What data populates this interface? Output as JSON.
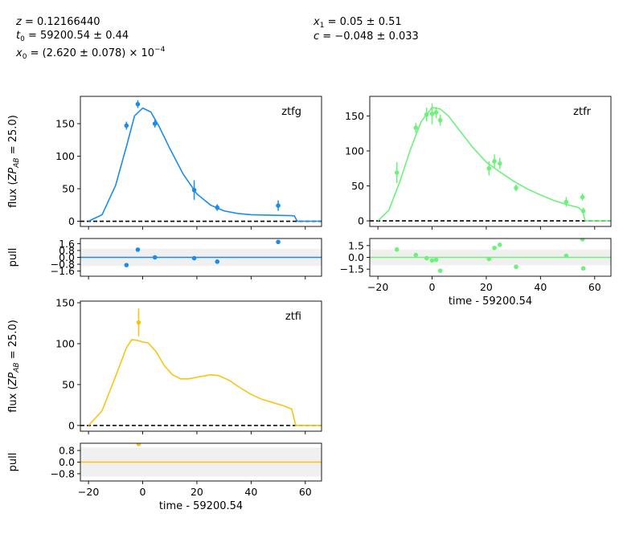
{
  "fit_params": {
    "col1": [
      "z = 0.12166440",
      "t0 = 59200.54 ± 0.44",
      "x0 = (2.620 ± 0.078) × 10^-4"
    ],
    "col2": [
      "x1 = 0.05 ± 0.51",
      "c = −0.048 ± 0.033"
    ]
  },
  "colors": {
    "ztfg": "#1a8ceb",
    "ztfr": "#6cf27a",
    "ztfi": "#f7c511",
    "zero_line": "#000000",
    "pull_band": "#f0f0f0"
  },
  "chart_data": [
    {
      "type": "scatter",
      "band": "ztfg",
      "band_label": "ztfg",
      "xlim": [
        -23,
        66
      ],
      "ylim": [
        -8,
        192
      ],
      "y_ticks": [
        0,
        50,
        100,
        150
      ],
      "ylabel": "flux (ZP_AB = 25.0)",
      "points": [
        {
          "x": -6,
          "y": 147,
          "err": 6
        },
        {
          "x": -1.8,
          "y": 180,
          "err": 6
        },
        {
          "x": 4.5,
          "y": 150,
          "err": 6
        },
        {
          "x": 19,
          "y": 48,
          "err": 15
        },
        {
          "x": 27.5,
          "y": 21,
          "err": 5
        },
        {
          "x": 50,
          "y": 24,
          "err": 8
        }
      ],
      "model": [
        [
          -20,
          0
        ],
        [
          -15,
          10
        ],
        [
          -10,
          55
        ],
        [
          -6,
          115
        ],
        [
          -3,
          162
        ],
        [
          0,
          174
        ],
        [
          3,
          168
        ],
        [
          6,
          146
        ],
        [
          10,
          112
        ],
        [
          15,
          72
        ],
        [
          20,
          42
        ],
        [
          25,
          25
        ],
        [
          30,
          16
        ],
        [
          35,
          12
        ],
        [
          40,
          10
        ],
        [
          45,
          9.5
        ],
        [
          50,
          9
        ],
        [
          55,
          8.5
        ],
        [
          56,
          8
        ],
        [
          57,
          0
        ],
        [
          66,
          0
        ]
      ]
    },
    {
      "type": "scatter",
      "band": "ztfg",
      "ylabel": "pull",
      "xlim": [
        -23,
        66
      ],
      "ylim": [
        -2.2,
        2.2
      ],
      "y_ticks": [
        -1.6,
        -0.8,
        0.0,
        0.8,
        1.6
      ],
      "y_tick_labels": [
        "−1.6",
        "−0.8",
        "0.0",
        "0.8",
        "1.6"
      ],
      "points": [
        {
          "x": -6,
          "y": -0.9
        },
        {
          "x": -1.8,
          "y": 0.9
        },
        {
          "x": 4.5,
          "y": 0.0
        },
        {
          "x": 19,
          "y": -0.1
        },
        {
          "x": 27.5,
          "y": -0.5
        },
        {
          "x": 50,
          "y": 1.8
        }
      ]
    },
    {
      "type": "scatter",
      "band": "ztfr",
      "band_label": "ztfr",
      "xlim": [
        -23,
        66
      ],
      "ylim": [
        -8,
        178
      ],
      "y_ticks": [
        0,
        50,
        100,
        150
      ],
      "points": [
        {
          "x": -13,
          "y": 69,
          "err": 15
        },
        {
          "x": -6,
          "y": 133,
          "err": 7
        },
        {
          "x": -2,
          "y": 152,
          "err": 10
        },
        {
          "x": 0,
          "y": 153,
          "err": 15
        },
        {
          "x": 1.5,
          "y": 155,
          "err": 8
        },
        {
          "x": 3,
          "y": 144,
          "err": 8
        },
        {
          "x": 21,
          "y": 75,
          "err": 10
        },
        {
          "x": 23,
          "y": 85,
          "err": 10
        },
        {
          "x": 25,
          "y": 82,
          "err": 8
        },
        {
          "x": 31,
          "y": 47,
          "err": 5
        },
        {
          "x": 49.5,
          "y": 27,
          "err": 7
        },
        {
          "x": 55.5,
          "y": 34,
          "err": 5
        },
        {
          "x": 55.8,
          "y": 14,
          "err": 5
        }
      ],
      "model": [
        [
          -20,
          0
        ],
        [
          -16,
          15
        ],
        [
          -12,
          55
        ],
        [
          -8,
          102
        ],
        [
          -4,
          142
        ],
        [
          0,
          162
        ],
        [
          3,
          160
        ],
        [
          6,
          150
        ],
        [
          10,
          130
        ],
        [
          15,
          105
        ],
        [
          20,
          84
        ],
        [
          25,
          70
        ],
        [
          30,
          57
        ],
        [
          35,
          46
        ],
        [
          40,
          37
        ],
        [
          45,
          29
        ],
        [
          50,
          23
        ],
        [
          54,
          19
        ],
        [
          55.5,
          14
        ],
        [
          56.5,
          0
        ],
        [
          66,
          0
        ]
      ]
    },
    {
      "type": "scatter",
      "band": "ztfr",
      "xlim": [
        -23,
        66
      ],
      "ylim": [
        -2.4,
        2.4
      ],
      "y_ticks": [
        -1.5,
        0.0,
        1.5
      ],
      "y_tick_labels": [
        "−1.5",
        "0.0",
        "1.5"
      ],
      "xlabel": "time - 59200.54",
      "x_ticks": [
        -20,
        0,
        20,
        40,
        60
      ],
      "x_tick_labels": [
        "−20",
        "0",
        "20",
        "40",
        "60"
      ],
      "points": [
        {
          "x": -13,
          "y": 1.0
        },
        {
          "x": -6,
          "y": 0.3
        },
        {
          "x": -2,
          "y": -0.1
        },
        {
          "x": 0,
          "y": -0.4
        },
        {
          "x": 1.5,
          "y": -0.3
        },
        {
          "x": 3,
          "y": -1.7
        },
        {
          "x": 21,
          "y": -0.2
        },
        {
          "x": 23,
          "y": 1.2
        },
        {
          "x": 25,
          "y": 1.6
        },
        {
          "x": 31,
          "y": -1.2
        },
        {
          "x": 49.5,
          "y": 0.2
        },
        {
          "x": 55.5,
          "y": 2.3
        },
        {
          "x": 55.8,
          "y": -1.4
        }
      ]
    },
    {
      "type": "scatter",
      "band": "ztfi",
      "band_label": "ztfi",
      "xlim": [
        -23,
        66
      ],
      "ylim": [
        -7,
        152
      ],
      "y_ticks": [
        0,
        50,
        100,
        150
      ],
      "ylabel": "flux (ZP_AB = 25.0)",
      "points": [
        {
          "x": -1.5,
          "y": 126,
          "err": 17
        }
      ],
      "model": [
        [
          -20,
          0
        ],
        [
          -15,
          18
        ],
        [
          -10,
          60
        ],
        [
          -6,
          95
        ],
        [
          -4,
          105
        ],
        [
          -2,
          104
        ],
        [
          0,
          102
        ],
        [
          2,
          101
        ],
        [
          5,
          90
        ],
        [
          8,
          73
        ],
        [
          11,
          62
        ],
        [
          14,
          57
        ],
        [
          17,
          57
        ],
        [
          20,
          59
        ],
        [
          25,
          62
        ],
        [
          28,
          61
        ],
        [
          32,
          55
        ],
        [
          36,
          46
        ],
        [
          40,
          38
        ],
        [
          44,
          32
        ],
        [
          48,
          28
        ],
        [
          52,
          24
        ],
        [
          55,
          20
        ],
        [
          56.5,
          0
        ],
        [
          66,
          0
        ]
      ]
    },
    {
      "type": "scatter",
      "band": "ztfi",
      "ylabel": "pull",
      "xlim": [
        -23,
        66
      ],
      "ylim": [
        -1.3,
        1.3
      ],
      "y_ticks": [
        -0.8,
        0.0,
        0.8
      ],
      "y_tick_labels": [
        "−0.8",
        "0.0",
        "0.8"
      ],
      "xlabel": "time - 59200.54",
      "x_ticks": [
        -20,
        0,
        20,
        40,
        60
      ],
      "x_tick_labels": [
        "−20",
        "0",
        "20",
        "40",
        "60"
      ],
      "points": [
        {
          "x": -1.5,
          "y": 1.25
        }
      ]
    }
  ]
}
